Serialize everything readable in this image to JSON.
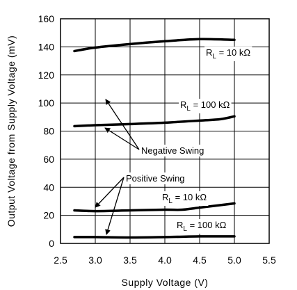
{
  "chart_data": {
    "type": "line",
    "xlabel": "Supply Voltage (V)",
    "ylabel": "Output Voltage from Supply Voltage (mV)",
    "xlim": [
      2.5,
      5.5
    ],
    "ylim": [
      0,
      160
    ],
    "x_ticks": [
      "2.5",
      "3.0",
      "3.5",
      "4.0",
      "4.5",
      "5.0",
      "5.5"
    ],
    "y_ticks": [
      "0",
      "20",
      "40",
      "60",
      "80",
      "100",
      "120",
      "140",
      "160"
    ],
    "grid": true,
    "series": [
      {
        "name": "Negative Swing, RL = 10 kΩ",
        "x": [
          2.7,
          3.0,
          3.5,
          4.0,
          4.5,
          5.0
        ],
        "y": [
          137,
          139.5,
          142,
          144,
          145.5,
          145
        ]
      },
      {
        "name": "Negative Swing, RL = 100 kΩ",
        "x": [
          2.7,
          3.0,
          3.5,
          4.0,
          4.5,
          4.8,
          5.0
        ],
        "y": [
          83.5,
          84.2,
          85.0,
          86.0,
          87.5,
          88.5,
          90.5
        ]
      },
      {
        "name": "Positive Swing, RL = 10 kΩ",
        "x": [
          2.7,
          3.0,
          3.5,
          4.0,
          4.25,
          4.5,
          5.0
        ],
        "y": [
          23.5,
          23.0,
          23.5,
          24.0,
          24.0,
          25.5,
          28.5
        ]
      },
      {
        "name": "Positive Swing, RL = 100 kΩ",
        "x": [
          2.7,
          3.0,
          3.5,
          4.0,
          4.5,
          5.0
        ],
        "y": [
          4.5,
          4.5,
          4.2,
          4.5,
          5.0,
          5.0
        ]
      }
    ],
    "annotations": {
      "rl_10k_negative": {
        "prefix": "R",
        "sub": "L",
        "suffix": " = 10 kΩ"
      },
      "rl_100k_negative": {
        "prefix": "R",
        "sub": "L",
        "suffix": " = 100 kΩ"
      },
      "negative_swing": "Negative Swing",
      "positive_swing": "Positive Swing",
      "rl_10k_positive": {
        "prefix": "R",
        "sub": "L",
        "suffix": " = 10 kΩ"
      },
      "rl_100k_positive": {
        "prefix": "R",
        "sub": "L",
        "suffix": " = 100 kΩ"
      }
    }
  }
}
